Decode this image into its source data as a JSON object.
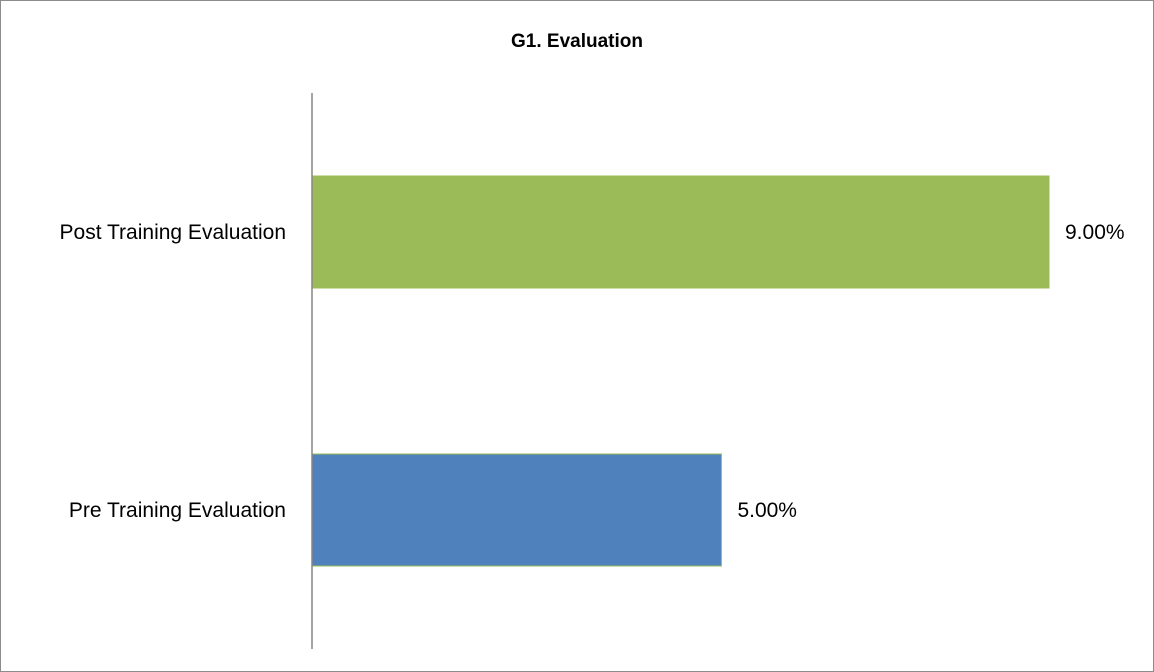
{
  "chart_data": {
    "type": "bar",
    "orientation": "horizontal",
    "title": "G1. Evaluation",
    "categories": [
      "Pre Training Evaluation",
      "Post Training Evaluation"
    ],
    "values": [
      5.0,
      9.0
    ],
    "value_labels": [
      "5.00%",
      "9.00%"
    ],
    "unit": "%",
    "xlim": [
      0,
      10
    ],
    "grid": false,
    "legend": "none",
    "colors": [
      "#4f81bd",
      "#9bbb59"
    ],
    "bar_edge_color": "#9bbb59",
    "axis_color": "#868686"
  }
}
